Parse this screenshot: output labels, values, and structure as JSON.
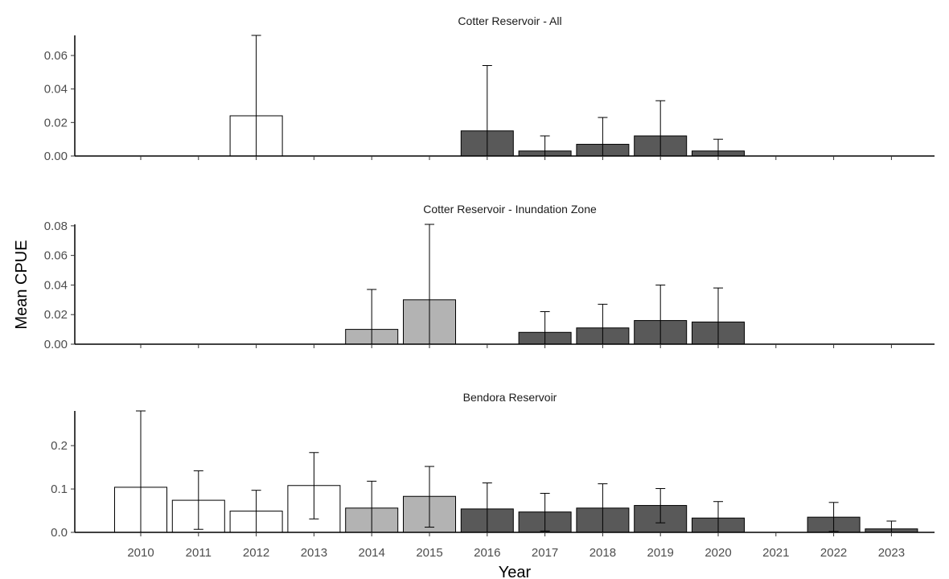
{
  "chart_data": {
    "type": "bar",
    "xlabel": "Year",
    "ylabel": "Mean CPUE",
    "categories": [
      "2010",
      "2011",
      "2012",
      "2013",
      "2014",
      "2015",
      "2016",
      "2017",
      "2018",
      "2019",
      "2020",
      "2021",
      "2022",
      "2023"
    ],
    "period_colors": {
      "2010-2013": "#ffffff",
      "2014-2015": "#b3b3b3",
      "2016-2023": "#595959"
    },
    "panels": [
      {
        "title": "Cotter Reservoir - All",
        "ylim": [
          0,
          0.072
        ],
        "yticks": [
          "0.00",
          "0.02",
          "0.04",
          "0.06"
        ],
        "bars": [
          {
            "year": "2012",
            "value": 0.024,
            "upper": 0.072,
            "lower": 0.0
          },
          {
            "year": "2016",
            "value": 0.015,
            "upper": 0.054,
            "lower": 0.0
          },
          {
            "year": "2017",
            "value": 0.003,
            "upper": 0.012,
            "lower": 0.0
          },
          {
            "year": "2018",
            "value": 0.007,
            "upper": 0.023,
            "lower": 0.0
          },
          {
            "year": "2019",
            "value": 0.012,
            "upper": 0.033,
            "lower": 0.0
          },
          {
            "year": "2020",
            "value": 0.003,
            "upper": 0.01,
            "lower": 0.0
          }
        ]
      },
      {
        "title": "Cotter Reservoir - Inundation Zone",
        "ylim": [
          0,
          0.081
        ],
        "yticks": [
          "0.00",
          "0.02",
          "0.04",
          "0.06",
          "0.08"
        ],
        "bars": [
          {
            "year": "2014",
            "value": 0.01,
            "upper": 0.037,
            "lower": 0.0
          },
          {
            "year": "2015",
            "value": 0.03,
            "upper": 0.081,
            "lower": 0.0
          },
          {
            "year": "2017",
            "value": 0.008,
            "upper": 0.022,
            "lower": 0.0
          },
          {
            "year": "2018",
            "value": 0.011,
            "upper": 0.027,
            "lower": 0.0
          },
          {
            "year": "2019",
            "value": 0.016,
            "upper": 0.04,
            "lower": 0.0
          },
          {
            "year": "2020",
            "value": 0.015,
            "upper": 0.038,
            "lower": 0.0
          }
        ]
      },
      {
        "title": "Bendora Reservoir",
        "ylim": [
          0,
          0.28
        ],
        "yticks": [
          "0.0",
          "0.1",
          "0.2"
        ],
        "bars": [
          {
            "year": "2010",
            "value": 0.104,
            "upper": 0.28,
            "lower": 0.0
          },
          {
            "year": "2011",
            "value": 0.074,
            "upper": 0.142,
            "lower": 0.007
          },
          {
            "year": "2012",
            "value": 0.049,
            "upper": 0.097,
            "lower": 0.0
          },
          {
            "year": "2013",
            "value": 0.108,
            "upper": 0.184,
            "lower": 0.031
          },
          {
            "year": "2014",
            "value": 0.056,
            "upper": 0.118,
            "lower": 0.0
          },
          {
            "year": "2015",
            "value": 0.083,
            "upper": 0.152,
            "lower": 0.012
          },
          {
            "year": "2016",
            "value": 0.054,
            "upper": 0.114,
            "lower": 0.0
          },
          {
            "year": "2017",
            "value": 0.047,
            "upper": 0.09,
            "lower": 0.003
          },
          {
            "year": "2018",
            "value": 0.056,
            "upper": 0.112,
            "lower": 0.0
          },
          {
            "year": "2019",
            "value": 0.062,
            "upper": 0.101,
            "lower": 0.022
          },
          {
            "year": "2020",
            "value": 0.033,
            "upper": 0.071,
            "lower": 0.0
          },
          {
            "year": "2022",
            "value": 0.035,
            "upper": 0.069,
            "lower": 0.002
          },
          {
            "year": "2023",
            "value": 0.008,
            "upper": 0.026,
            "lower": 0.0
          }
        ]
      }
    ]
  }
}
